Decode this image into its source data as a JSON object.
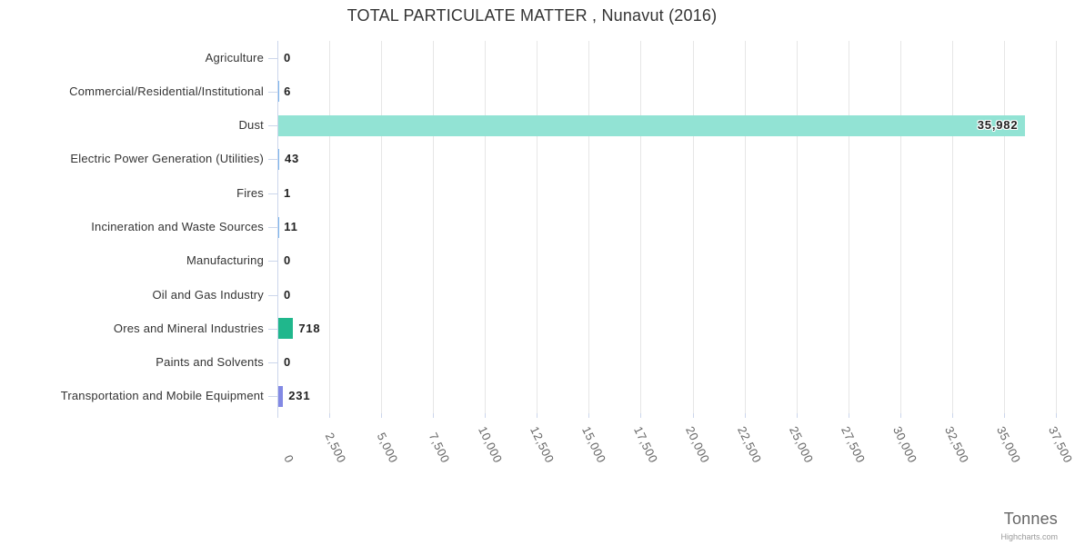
{
  "chart_data": {
    "type": "bar",
    "orientation": "horizontal",
    "title": "TOTAL PARTICULATE MATTER , Nunavut (2016)",
    "xlabel": "Tonnes",
    "categories": [
      "Agriculture",
      "Commercial/Residential/Institutional",
      "Dust",
      "Electric Power Generation (Utilities)",
      "Fires",
      "Incineration and Waste Sources",
      "Manufacturing",
      "Oil and Gas Industry",
      "Ores and Mineral Industries",
      "Paints and Solvents",
      "Transportation and Mobile Equipment"
    ],
    "values": [
      0,
      6,
      35982,
      43,
      1,
      11,
      0,
      0,
      718,
      0,
      231
    ],
    "value_labels": [
      "0",
      "6",
      "35,982",
      "43",
      "1",
      "11",
      "0",
      "0",
      "718",
      "0",
      "231"
    ],
    "bar_colors": [
      null,
      null,
      "#92e3d4",
      null,
      null,
      null,
      null,
      null,
      "#20b78c",
      null,
      "#8289e4"
    ],
    "default_bar_color": "#7cb5ec",
    "x_tick_labels": [
      "0",
      "2,500",
      "5,000",
      "7,500",
      "10,000",
      "12,500",
      "15,000",
      "17,500",
      "20,000",
      "22,500",
      "25,000",
      "27,500",
      "30,000",
      "32,500",
      "35,000",
      "37,500"
    ],
    "xlim": [
      0,
      37500
    ],
    "tick_interval": 2500,
    "grid": true,
    "legend_position": "none",
    "credit": "Highcharts.com",
    "colors": {
      "grid_line": "#e6e6e6",
      "axis_line": "#ccd6eb",
      "title_text": "#333333",
      "category_text": "#333333",
      "tick_text": "#666666",
      "value_text": "#222222",
      "axis_title_text": "#666666",
      "credit_text": "#999999",
      "background": "#ffffff"
    }
  }
}
